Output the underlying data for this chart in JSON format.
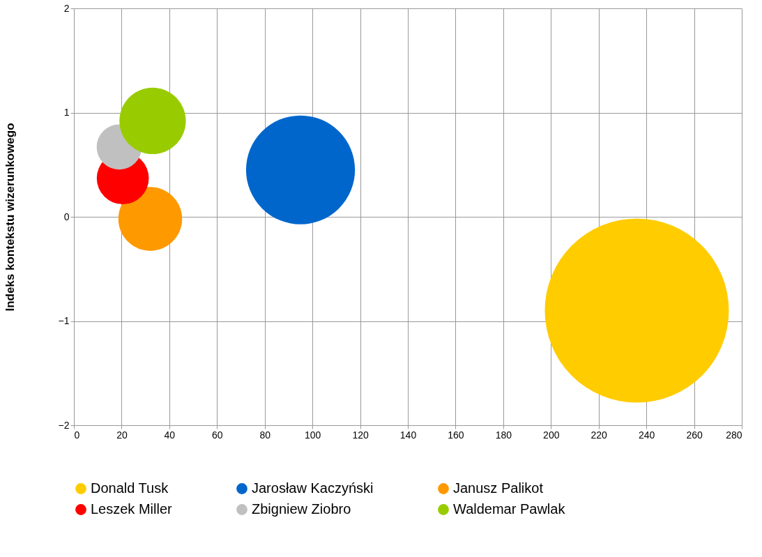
{
  "chart_data": {
    "type": "bubble",
    "ylabel": "Indeks kontekstu wizerunkowego",
    "xlim": [
      0,
      280
    ],
    "xticks": [
      0,
      20,
      40,
      60,
      80,
      100,
      120,
      140,
      160,
      180,
      200,
      220,
      240,
      260,
      280
    ],
    "ylim": [
      -2,
      2
    ],
    "yticks": [
      -2,
      -1,
      0,
      1,
      2
    ],
    "grid": true,
    "legend": "bottom",
    "marker": "circle",
    "series": [
      {
        "name": "Donald Tusk",
        "color": "#ffcc00",
        "x": [
          236
        ],
        "values": [
          -0.9
        ],
        "sizes": [
          1
        ]
      },
      {
        "name": "Jarosław Kaczyński",
        "color": "#0066cc",
        "x": [
          95
        ],
        "values": [
          0.45
        ],
        "sizes": [
          0.35
        ]
      },
      {
        "name": "Janusz Palikot",
        "color": "#ff9900",
        "x": [
          32
        ],
        "values": [
          -0.02
        ],
        "sizes": [
          0.12
        ]
      },
      {
        "name": "Leszek Miller",
        "color": "#ff0000",
        "x": [
          20.5
        ],
        "values": [
          0.37
        ],
        "sizes": [
          0.08
        ]
      },
      {
        "name": "Zbigniew Ziobro",
        "color": "#c0c0c0",
        "x": [
          19
        ],
        "values": [
          0.67
        ],
        "sizes": [
          0.06
        ]
      },
      {
        "name": "Waldemar Pawlak",
        "color": "#99cc00",
        "x": [
          33
        ],
        "values": [
          0.92
        ],
        "sizes": [
          0.13
        ]
      }
    ]
  }
}
